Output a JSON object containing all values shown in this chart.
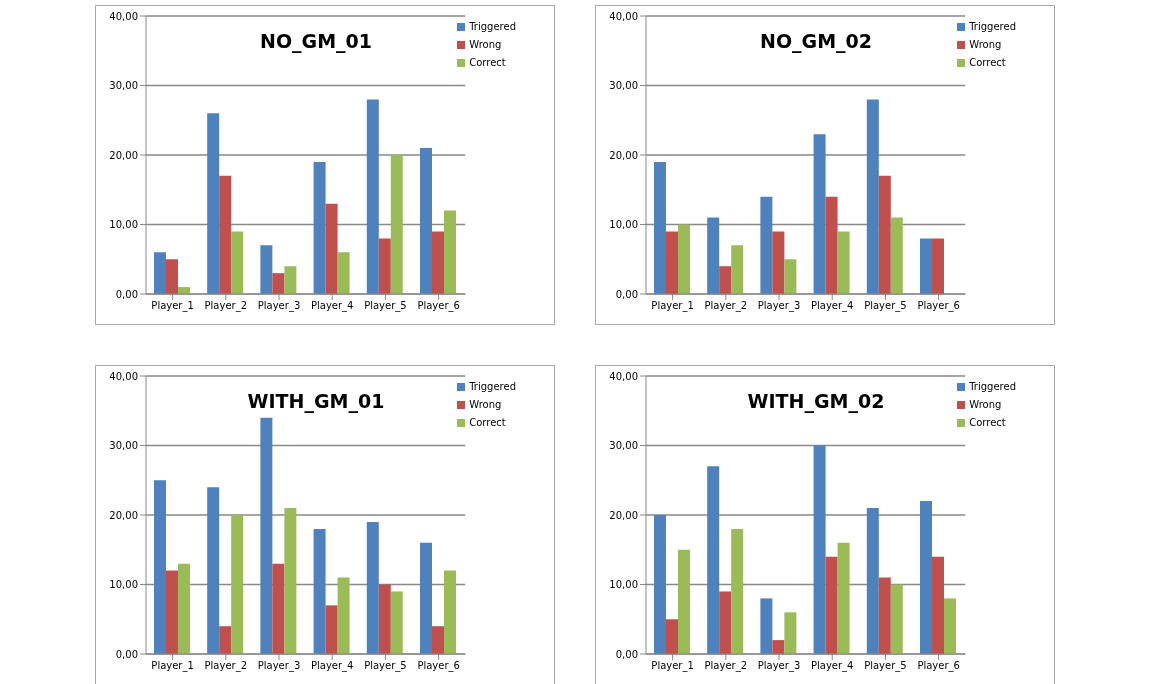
{
  "chart_data": [
    {
      "type": "bar",
      "title": "NO_GM_01",
      "categories": [
        "Player_1",
        "Player_2",
        "Player_3",
        "Player_4",
        "Player_5",
        "Player_6"
      ],
      "series": [
        {
          "name": "Triggered",
          "color": "#4f81bd",
          "values": [
            6,
            26,
            7,
            19,
            28,
            21
          ]
        },
        {
          "name": "Wrong",
          "color": "#c0504d",
          "values": [
            5,
            17,
            3,
            13,
            8,
            9
          ]
        },
        {
          "name": "Correct",
          "color": "#9bbb59",
          "values": [
            1,
            9,
            4,
            6,
            20,
            12
          ]
        }
      ],
      "ylim": [
        0,
        40
      ],
      "yticks": [
        {
          "value": 0,
          "label": "0,00"
        },
        {
          "value": 10,
          "label": "10,00"
        },
        {
          "value": 20,
          "label": "20,00"
        },
        {
          "value": 30,
          "label": "30,00"
        },
        {
          "value": 40,
          "label": "40,00"
        }
      ],
      "grid": "y",
      "legend": "top right"
    },
    {
      "type": "bar",
      "title": "NO_GM_02",
      "categories": [
        "Player_1",
        "Player_2",
        "Player_3",
        "Player_4",
        "Player_5",
        "Player_6"
      ],
      "series": [
        {
          "name": "Triggered",
          "color": "#4f81bd",
          "values": [
            19,
            11,
            14,
            23,
            28,
            8
          ]
        },
        {
          "name": "Wrong",
          "color": "#c0504d",
          "values": [
            9,
            4,
            9,
            14,
            17,
            8
          ]
        },
        {
          "name": "Correct",
          "color": "#9bbb59",
          "values": [
            10,
            7,
            5,
            9,
            11,
            null
          ]
        }
      ],
      "ylim": [
        0,
        40
      ],
      "yticks": [
        {
          "value": 0,
          "label": "0,00"
        },
        {
          "value": 10,
          "label": "10,00"
        },
        {
          "value": 20,
          "label": "20,00"
        },
        {
          "value": 30,
          "label": "30,00"
        },
        {
          "value": 40,
          "label": "40,00"
        }
      ],
      "grid": "y",
      "legend": "top right"
    },
    {
      "type": "bar",
      "title": "WITH_GM_01",
      "categories": [
        "Player_1",
        "Player_2",
        "Player_3",
        "Player_4",
        "Player_5",
        "Player_6"
      ],
      "series": [
        {
          "name": "Triggered",
          "color": "#4f81bd",
          "values": [
            25,
            24,
            34,
            18,
            19,
            16
          ]
        },
        {
          "name": "Wrong",
          "color": "#c0504d",
          "values": [
            12,
            4,
            13,
            7,
            10,
            4
          ]
        },
        {
          "name": "Correct",
          "color": "#9bbb59",
          "values": [
            13,
            20,
            21,
            11,
            9,
            12
          ]
        }
      ],
      "ylim": [
        0,
        40
      ],
      "yticks": [
        {
          "value": 0,
          "label": "0,00"
        },
        {
          "value": 10,
          "label": "10,00"
        },
        {
          "value": 20,
          "label": "20,00"
        },
        {
          "value": 30,
          "label": "30,00"
        },
        {
          "value": 40,
          "label": "40,00"
        }
      ],
      "grid": "y",
      "legend": "top right"
    },
    {
      "type": "bar",
      "title": "WITH_GM_02",
      "categories": [
        "Player_1",
        "Player_2",
        "Player_3",
        "Player_4",
        "Player_5",
        "Player_6"
      ],
      "series": [
        {
          "name": "Triggered",
          "color": "#4f81bd",
          "values": [
            20,
            27,
            8,
            30,
            21,
            22
          ]
        },
        {
          "name": "Wrong",
          "color": "#c0504d",
          "values": [
            5,
            9,
            2,
            14,
            11,
            14
          ]
        },
        {
          "name": "Correct",
          "color": "#9bbb59",
          "values": [
            15,
            18,
            6,
            16,
            10,
            8
          ]
        }
      ],
      "ylim": [
        0,
        40
      ],
      "yticks": [
        {
          "value": 0,
          "label": "0,00"
        },
        {
          "value": 10,
          "label": "10,00"
        },
        {
          "value": 20,
          "label": "20,00"
        },
        {
          "value": 30,
          "label": "30,00"
        },
        {
          "value": 40,
          "label": "40,00"
        }
      ],
      "grid": "y",
      "legend": "top right"
    }
  ]
}
